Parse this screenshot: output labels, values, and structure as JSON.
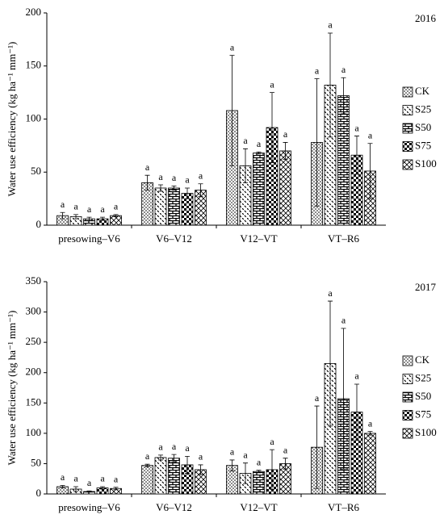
{
  "chart_data": [
    {
      "type": "bar",
      "annotation": "2016",
      "y_label": "Water use efficiency (kg ha⁻¹ mm⁻¹)",
      "categories": [
        "presowing–V6",
        "V6–V12",
        "V12–VT",
        "VT–R6"
      ],
      "ylim": [
        0,
        200
      ],
      "yticks": [
        0,
        50,
        100,
        150,
        200
      ],
      "legend": "right",
      "series": [
        {
          "name": "CK",
          "color": "#000000",
          "pattern": "dots",
          "values": [
            9,
            40,
            108,
            78
          ],
          "errors": [
            3,
            7,
            52,
            60
          ],
          "letters": [
            "a",
            "a",
            "a",
            "a"
          ]
        },
        {
          "name": "S25",
          "color": "#000000",
          "pattern": "dashes",
          "values": [
            8,
            35,
            56,
            132
          ],
          "errors": [
            2,
            3,
            16,
            49
          ],
          "letters": [
            "a",
            "a",
            "a",
            "a"
          ]
        },
        {
          "name": "S50",
          "color": "#000000",
          "pattern": "brick",
          "values": [
            6,
            35,
            68,
            122
          ],
          "errors": [
            1.5,
            2,
            1,
            17
          ],
          "letters": [
            "a",
            "a",
            "a",
            "a"
          ]
        },
        {
          "name": "S75",
          "color": "#000000",
          "pattern": "checker",
          "values": [
            6,
            30,
            92,
            66
          ],
          "errors": [
            1.5,
            5,
            33,
            18
          ],
          "letters": [
            "a",
            "a",
            "a",
            "a"
          ]
        },
        {
          "name": "S100",
          "color": "#000000",
          "pattern": "zigzag",
          "values": [
            9,
            33,
            70,
            51
          ],
          "errors": [
            1,
            6,
            8,
            26
          ],
          "letters": [
            "a",
            "a",
            "a",
            "a"
          ]
        }
      ]
    },
    {
      "type": "bar",
      "annotation": "2017",
      "y_label": "Water use efficiency (kg ha⁻¹ mm⁻¹)",
      "categories": [
        "presowing–V6",
        "V6–V12",
        "V12–VT",
        "VT–R6"
      ],
      "ylim": [
        0,
        350
      ],
      "yticks": [
        0,
        50,
        100,
        150,
        200,
        250,
        300,
        350
      ],
      "legend": "right",
      "series": [
        {
          "name": "CK",
          "color": "#000000",
          "pattern": "dots",
          "values": [
            12,
            47,
            47,
            77
          ],
          "errors": [
            2,
            2,
            9,
            68
          ],
          "letters": [
            "a",
            "a",
            "a",
            "a"
          ]
        },
        {
          "name": "S25",
          "color": "#000000",
          "pattern": "dashes",
          "values": [
            8,
            60,
            34,
            215
          ],
          "errors": [
            4,
            4,
            17,
            103
          ],
          "letters": [
            "a",
            "a",
            "a",
            "a"
          ]
        },
        {
          "name": "S50",
          "color": "#000000",
          "pattern": "brick",
          "values": [
            4,
            59,
            37,
            157
          ],
          "errors": [
            1,
            6,
            2,
            116
          ],
          "letters": [
            "a",
            "a",
            "a",
            "a"
          ]
        },
        {
          "name": "S75",
          "color": "#000000",
          "pattern": "checker",
          "values": [
            10,
            48,
            40,
            135
          ],
          "errors": [
            2,
            14,
            33,
            46
          ],
          "letters": [
            "a",
            "a",
            "a",
            "a"
          ]
        },
        {
          "name": "S100",
          "color": "#000000",
          "pattern": "zigzag",
          "values": [
            9,
            40,
            50,
            100
          ],
          "errors": [
            2,
            8,
            9,
            3
          ],
          "letters": [
            "a",
            "a",
            "a",
            "a"
          ]
        }
      ]
    }
  ]
}
